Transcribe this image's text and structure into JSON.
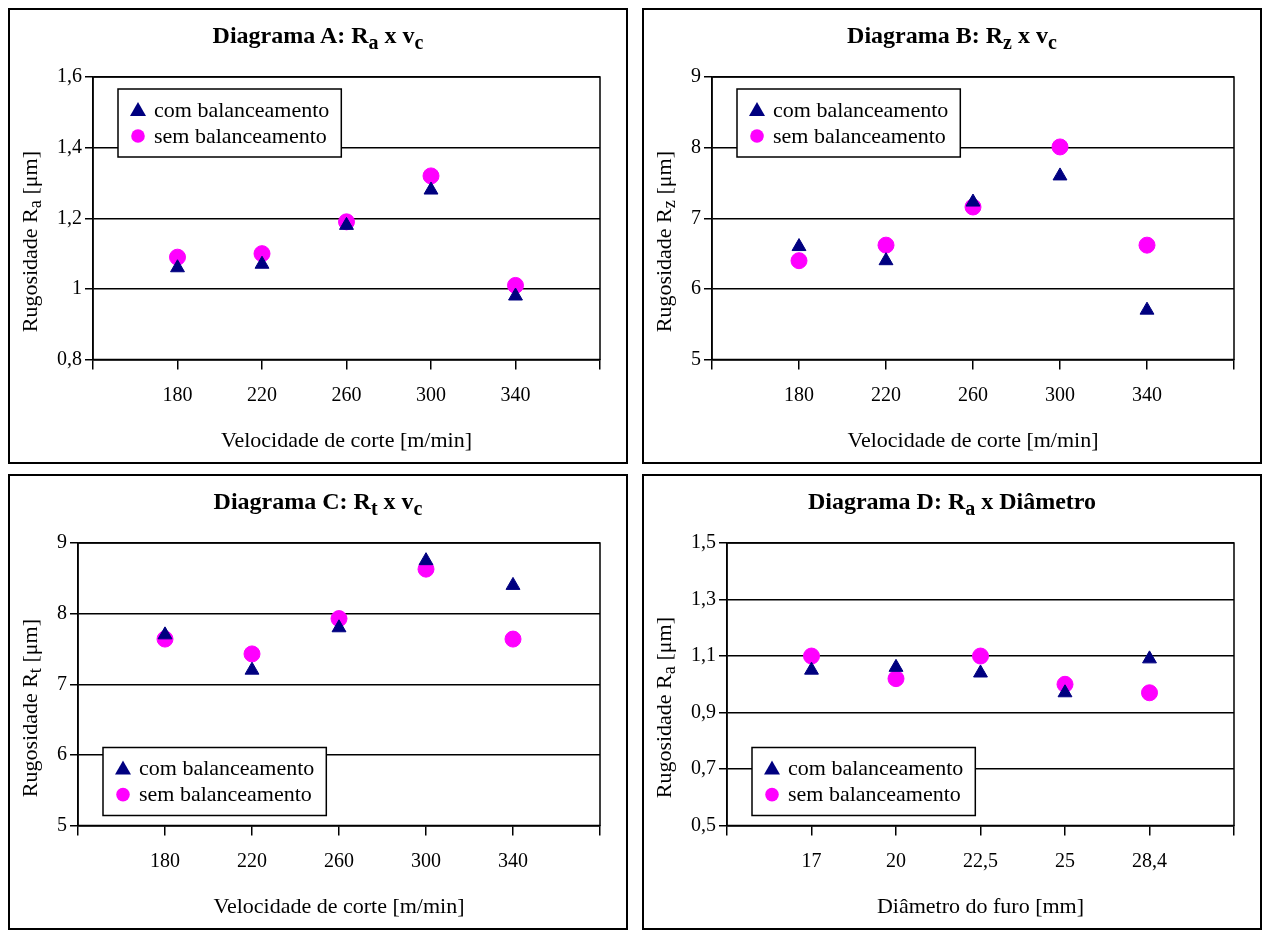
{
  "chart_data": [
    {
      "type": "scatter",
      "title": "Diagrama A: R$_{a}$ x v$_{c}$",
      "xlabel": "Velocidade de corte [m/min]",
      "ylabel": "Rugosidade R$_{a}$ [μm]",
      "categories": [
        "180",
        "220",
        "260",
        "300",
        "340"
      ],
      "ylim": [
        0.8,
        1.6
      ],
      "yticks": [
        {
          "value": 0.8,
          "label": "0,8"
        },
        1,
        {
          "value": 1.2,
          "label": "1,2"
        },
        {
          "value": 1.4,
          "label": "1,4"
        },
        {
          "value": 1.6,
          "label": "1,6"
        }
      ],
      "grid": "y",
      "legend": "top left",
      "series": [
        {
          "name": "com balanceamento",
          "color": "#000080",
          "marker": "triangle",
          "values": [
            1.06,
            1.07,
            1.18,
            1.28,
            0.98
          ]
        },
        {
          "name": "sem balanceamento",
          "color": "#ff00ff",
          "marker": "circle",
          "values": [
            1.09,
            1.1,
            1.19,
            1.32,
            1.01
          ]
        }
      ]
    },
    {
      "type": "scatter",
      "title": "Diagrama B: R$_{z}$ x v$_{c}$",
      "xlabel": "Velocidade de corte [m/min]",
      "ylabel": "Rugosidade R$_{z}$ [μm]",
      "categories": [
        "180",
        "220",
        "260",
        "300",
        "340"
      ],
      "ylim": [
        5,
        9
      ],
      "yticks": [
        5,
        6,
        7,
        8,
        9
      ],
      "grid": "y",
      "legend": "top left",
      "series": [
        {
          "name": "com balanceamento",
          "color": "#000080",
          "marker": "triangle",
          "values": [
            6.6,
            6.4,
            7.23,
            7.6,
            5.7
          ]
        },
        {
          "name": "sem balanceamento",
          "color": "#ff00ff",
          "marker": "circle",
          "values": [
            6.4,
            6.62,
            7.16,
            8.01,
            6.62
          ]
        }
      ]
    },
    {
      "type": "scatter",
      "title": "Diagrama C: R$_{t}$ x v$_{c}$",
      "xlabel": "Velocidade de corte [m/min]",
      "ylabel": "Rugosidade R$_{t}$ [μm]",
      "categories": [
        "180",
        "220",
        "260",
        "300",
        "340"
      ],
      "ylim": [
        5,
        9
      ],
      "yticks": [
        5,
        6,
        7,
        8,
        9
      ],
      "grid": "y",
      "legend": "bottom left",
      "series": [
        {
          "name": "com balanceamento",
          "color": "#000080",
          "marker": "triangle",
          "values": [
            7.7,
            7.2,
            7.8,
            8.75,
            8.4
          ]
        },
        {
          "name": "sem balanceamento",
          "color": "#ff00ff",
          "marker": "circle",
          "values": [
            7.64,
            7.43,
            7.93,
            8.63,
            7.64
          ]
        }
      ]
    },
    {
      "type": "scatter",
      "title": "Diagrama D: R$_{a}$ x Diâmetro",
      "xlabel": "Diâmetro do furo [mm]",
      "ylabel": "Rugosidade R$_{a}$ [μm]",
      "categories": [
        "17",
        "20",
        "22,5",
        "25",
        "28,4"
      ],
      "ylim": [
        0.5,
        1.5
      ],
      "yticks": [
        {
          "value": 0.5,
          "label": "0,5"
        },
        {
          "value": 0.7,
          "label": "0,7"
        },
        {
          "value": 0.9,
          "label": "0,9"
        },
        {
          "value": 1.1,
          "label": "1,1"
        },
        {
          "value": 1.3,
          "label": "1,3"
        },
        {
          "value": 1.5,
          "label": "1,5"
        }
      ],
      "grid": "y",
      "legend": "bottom left",
      "series": [
        {
          "name": "com balanceamento",
          "color": "#000080",
          "marker": "triangle",
          "values": [
            1.05,
            1.06,
            1.04,
            0.97,
            1.09
          ]
        },
        {
          "name": "sem balanceamento",
          "color": "#ff00ff",
          "marker": "circle",
          "values": [
            1.1,
            1.02,
            1.1,
            1.0,
            0.97
          ]
        }
      ]
    }
  ]
}
